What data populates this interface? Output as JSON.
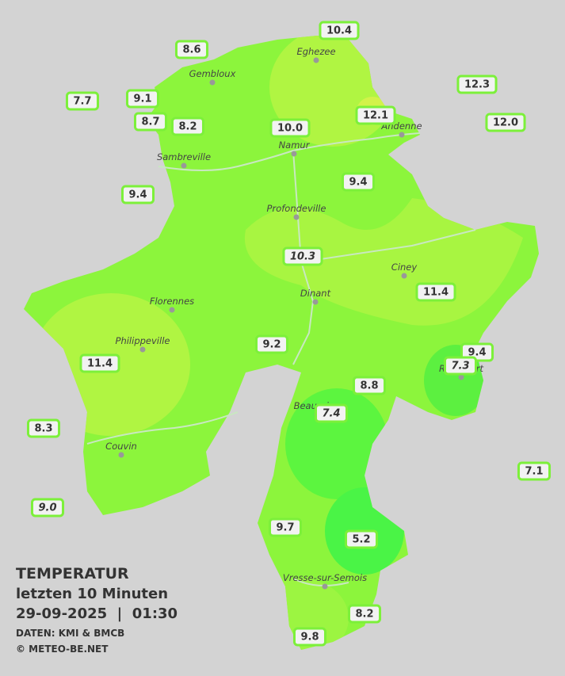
{
  "header": {
    "title": "TEMPERATUR",
    "period": "letzten 10 Minuten",
    "timestamp": "29-09-2025  |  01:30",
    "source": "DATEN: KMI & BMCB",
    "copyright": "© METEO-BE.NET"
  },
  "cities": [
    {
      "label": "Gembloux"
    },
    {
      "label": "Eghezee"
    },
    {
      "label": "Andenne"
    },
    {
      "label": "Namur"
    },
    {
      "label": "Sambreville"
    },
    {
      "label": "Profondeville"
    },
    {
      "label": "Ciney"
    },
    {
      "label": "Dinant"
    },
    {
      "label": "Florennes"
    },
    {
      "label": "Philippeville"
    },
    {
      "label": "Rochefort"
    },
    {
      "label": "Beauraing"
    },
    {
      "label": "Couvin"
    },
    {
      "label": "Vresse-sur-Semois"
    }
  ],
  "stations": [
    {
      "label": "10.4"
    },
    {
      "label": "8.6"
    },
    {
      "label": "12.3"
    },
    {
      "label": "7.7"
    },
    {
      "label": "9.1"
    },
    {
      "label": "12.1"
    },
    {
      "label": "8.7"
    },
    {
      "label": "8.2"
    },
    {
      "label": "10.0"
    },
    {
      "label": "12.0"
    },
    {
      "label": "9.4"
    },
    {
      "label": "9.4"
    },
    {
      "label": "10.3",
      "italic": true
    },
    {
      "label": "11.4"
    },
    {
      "label": "9.2"
    },
    {
      "label": "9.4"
    },
    {
      "label": "7.3",
      "italic": true
    },
    {
      "label": "11.4"
    },
    {
      "label": "8.8"
    },
    {
      "label": "7.4",
      "italic": true
    },
    {
      "label": "8.3"
    },
    {
      "label": "7.1"
    },
    {
      "label": "9.0",
      "italic": true
    },
    {
      "label": "9.7"
    },
    {
      "label": "5.2"
    },
    {
      "label": "8.2"
    },
    {
      "label": "9.8"
    }
  ]
}
